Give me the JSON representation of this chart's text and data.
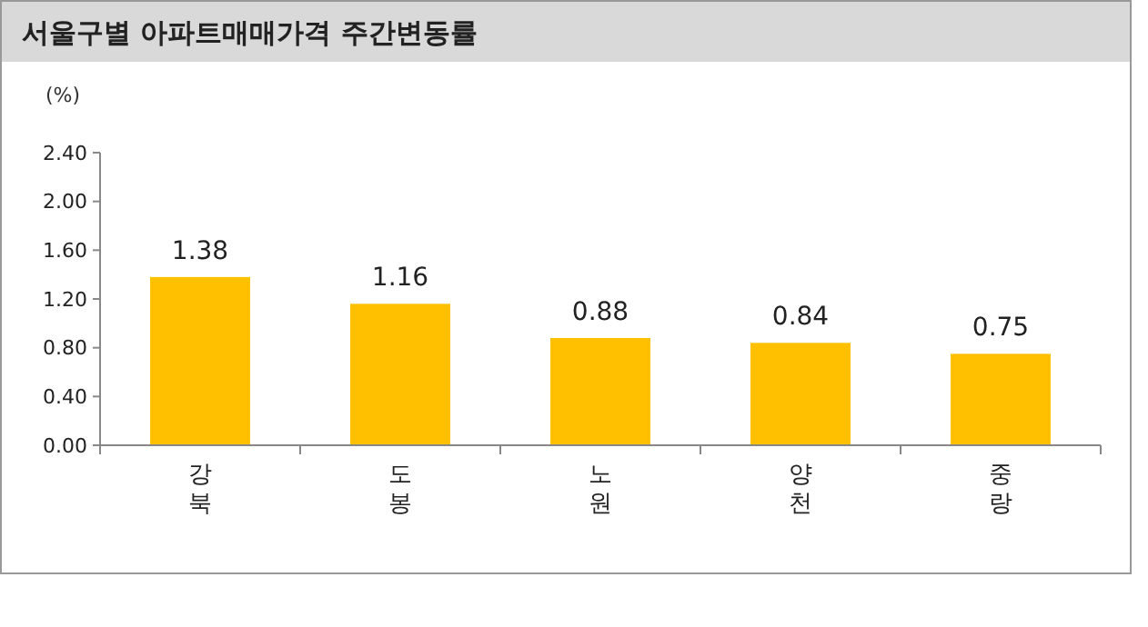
{
  "chart_data": {
    "type": "bar",
    "title": "서울구별 아파트매매가격 주간변동률",
    "ylabel": "(%)",
    "categories": [
      "강북",
      "도봉",
      "노원",
      "양천",
      "중랑"
    ],
    "values": [
      1.38,
      1.16,
      0.88,
      0.84,
      0.75
    ],
    "color": "#ffc000",
    "ylim": [
      0,
      2.4
    ],
    "yticks": [
      {
        "value": 0,
        "label": "0.00"
      },
      {
        "value": 0.4,
        "label": "0.40"
      },
      {
        "value": 0.8,
        "label": "0.80"
      },
      {
        "value": 1.2,
        "label": "1.20"
      },
      {
        "value": 1.6,
        "label": "1.60"
      },
      {
        "value": 2.0,
        "label": "2.00"
      },
      {
        "value": 2.4,
        "label": "2.40"
      }
    ],
    "data_labels": true,
    "grid": false
  }
}
